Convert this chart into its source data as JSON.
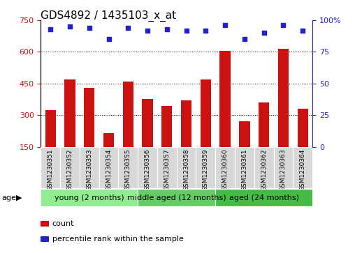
{
  "title": "GDS4892 / 1435103_x_at",
  "samples": [
    "GSM1230351",
    "GSM1230352",
    "GSM1230353",
    "GSM1230354",
    "GSM1230355",
    "GSM1230356",
    "GSM1230357",
    "GSM1230358",
    "GSM1230359",
    "GSM1230360",
    "GSM1230361",
    "GSM1230362",
    "GSM1230363",
    "GSM1230364"
  ],
  "counts": [
    325,
    470,
    430,
    215,
    460,
    375,
    345,
    370,
    470,
    605,
    270,
    360,
    615,
    330
  ],
  "percentile_ranks": [
    93,
    95,
    94,
    85,
    94,
    92,
    93,
    92,
    92,
    96,
    85,
    90,
    96,
    92
  ],
  "groups": [
    {
      "label": "young (2 months)",
      "start": 0,
      "end": 5,
      "color": "#90EE90"
    },
    {
      "label": "middle aged (12 months)",
      "start": 5,
      "end": 9,
      "color": "#66CC66"
    },
    {
      "label": "aged (24 months)",
      "start": 9,
      "end": 14,
      "color": "#44BB44"
    }
  ],
  "ylim_left": [
    150,
    750
  ],
  "ylim_right": [
    0,
    100
  ],
  "yticks_left": [
    150,
    300,
    450,
    600,
    750
  ],
  "yticks_right": [
    0,
    25,
    50,
    75,
    100
  ],
  "bar_color": "#CC1111",
  "dot_color": "#2222CC",
  "bar_bottom": 150,
  "grid_values": [
    300,
    450,
    600
  ],
  "legend_count": "count",
  "legend_percentile": "percentile rank within the sample",
  "title_fontsize": 11,
  "tick_fontsize": 8,
  "group_label_fontsize": 8
}
